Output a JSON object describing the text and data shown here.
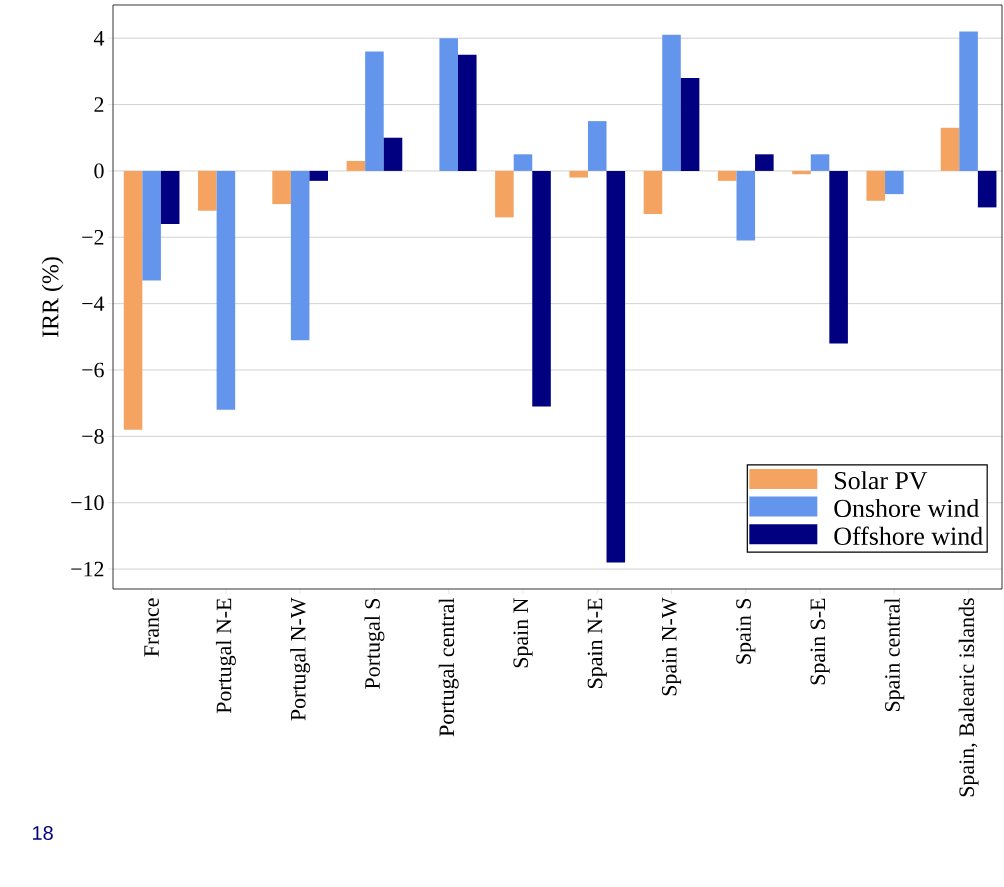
{
  "chart_data": {
    "type": "bar",
    "ylabel": "IRR (%)",
    "categories": [
      "France",
      "Portugal N-E",
      "Portugal N-W",
      "Portugal S",
      "Portugal central",
      "Spain N",
      "Spain N-E",
      "Spain N-W",
      "Spain S",
      "Spain S-E",
      "Spain central",
      "Spain, Balearic islands"
    ],
    "series": [
      {
        "name": "Solar PV",
        "color": "#f4a460",
        "values": [
          -7.8,
          -1.2,
          -1.0,
          0.3,
          null,
          -1.4,
          -0.2,
          -1.3,
          -0.3,
          -0.1,
          -0.9,
          1.3
        ]
      },
      {
        "name": "Onshore wind",
        "color": "#6495ed",
        "values": [
          -3.3,
          -7.2,
          -5.1,
          3.6,
          4.0,
          0.5,
          1.5,
          4.1,
          -2.1,
          0.5,
          -0.7,
          4.2
        ]
      },
      {
        "name": "Offshore wind",
        "color": "#000080",
        "values": [
          -1.6,
          null,
          -0.3,
          1.0,
          3.5,
          -7.1,
          -11.8,
          2.8,
          0.5,
          -5.2,
          null,
          -1.1
        ]
      }
    ],
    "ylim": [
      -12.6,
      5.0
    ],
    "yticks": [
      {
        "value": -12,
        "label": "−12"
      },
      {
        "value": -10,
        "label": "−10"
      },
      {
        "value": -8,
        "label": "−8"
      },
      {
        "value": -6,
        "label": "−6"
      },
      {
        "value": -4,
        "label": "−4"
      },
      {
        "value": -2,
        "label": "−2"
      },
      0,
      2,
      4
    ],
    "grid": "y",
    "legend": "bottom right",
    "annotations": [
      "18"
    ]
  }
}
